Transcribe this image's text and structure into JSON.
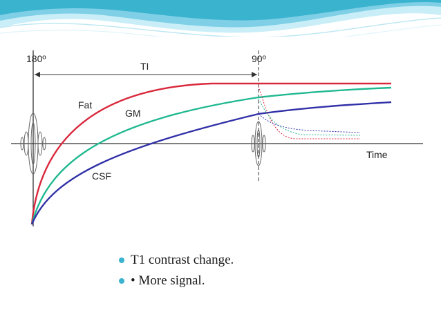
{
  "diagram": {
    "labels": {
      "pulse_180": "180º",
      "pulse_90": "90º",
      "ti": "TI",
      "fat": "Fat",
      "gm": "GM",
      "csf": "CSF",
      "time": "Time"
    },
    "colors": {
      "fat": "#d9283c",
      "gm": "#1fb890",
      "csf": "#3030a8",
      "axis": "#333333"
    }
  },
  "bullets": [
    "T1 contrast change.",
    "• More signal."
  ],
  "theme": {
    "accent": "#3ab3cf",
    "wave_light": "#9fdced"
  }
}
